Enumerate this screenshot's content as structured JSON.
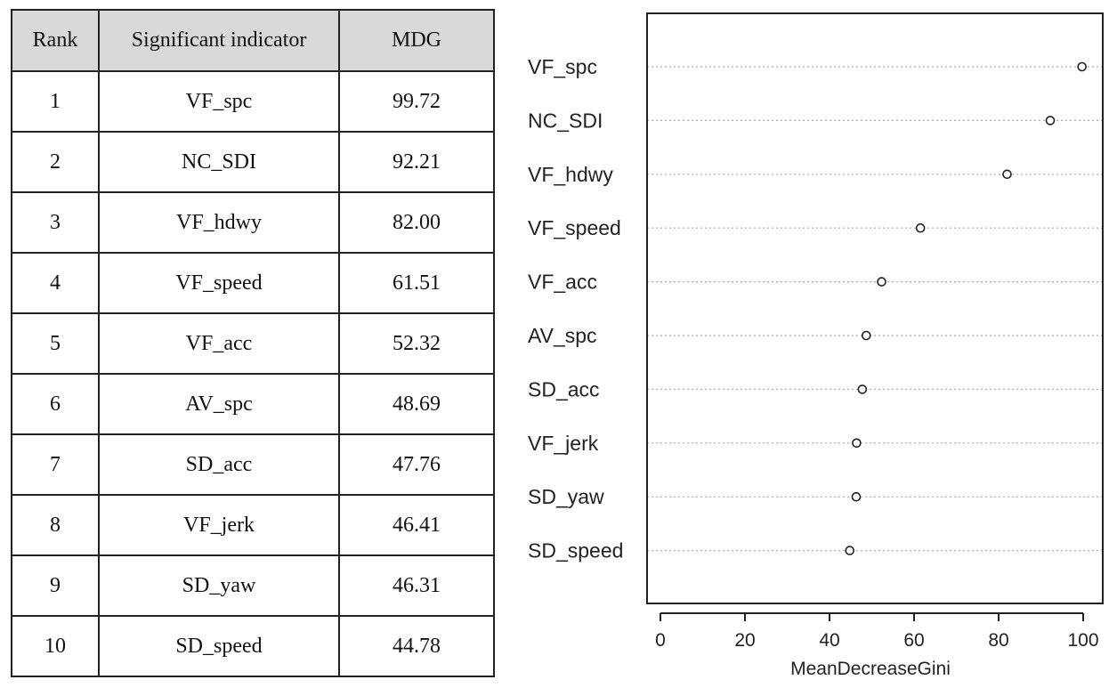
{
  "table": {
    "headers": [
      "Rank",
      "Significant indicator",
      "MDG"
    ],
    "rows": [
      [
        "1",
        "VF_spc",
        "99.72"
      ],
      [
        "2",
        "NC_SDI",
        "92.21"
      ],
      [
        "3",
        "VF_hdwy",
        "82.00"
      ],
      [
        "4",
        "VF_speed",
        "61.51"
      ],
      [
        "5",
        "VF_acc",
        "52.32"
      ],
      [
        "6",
        "AV_spc",
        "48.69"
      ],
      [
        "7",
        "SD_acc",
        "47.76"
      ],
      [
        "8",
        "VF_jerk",
        "46.41"
      ],
      [
        "9",
        "SD_yaw",
        "46.31"
      ],
      [
        "10",
        "SD_speed",
        "44.78"
      ]
    ]
  },
  "chart_data": {
    "type": "scatter",
    "title": "",
    "xlabel": "MeanDecreaseGini",
    "ylabel": "",
    "categories": [
      "VF_spc",
      "NC_SDI",
      "VF_hdwy",
      "VF_speed",
      "VF_acc",
      "AV_spc",
      "SD_acc",
      "VF_jerk",
      "SD_yaw",
      "SD_speed"
    ],
    "values": [
      99.72,
      92.21,
      82.0,
      61.51,
      52.32,
      48.69,
      47.76,
      46.41,
      46.31,
      44.78
    ],
    "xlim": [
      -4,
      104
    ],
    "xticks": [
      "0",
      "20",
      "40",
      "60",
      "80",
      "100"
    ],
    "grid": "dotted horizontal guide lines",
    "marker": "open-circle",
    "colors": {
      "marker_stroke": "#222222",
      "guide_line": "#aaaaaa",
      "frame": "#222222"
    }
  }
}
